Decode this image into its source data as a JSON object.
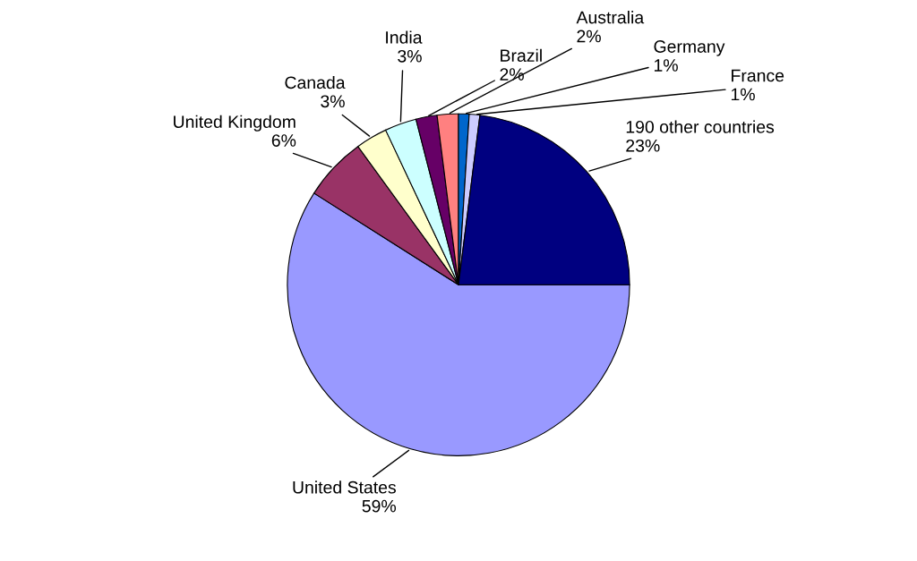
{
  "chart_data": {
    "type": "pie",
    "categories": [
      "United States",
      "United Kingdom",
      "Canada",
      "India",
      "Brazil",
      "Australia",
      "Germany",
      "France",
      "190 other countries"
    ],
    "values": [
      59,
      6,
      3,
      3,
      2,
      2,
      1,
      1,
      23
    ],
    "value_labels": [
      "59%",
      "6%",
      "3%",
      "3%",
      "2%",
      "2%",
      "1%",
      "1%",
      "23%"
    ],
    "colors": [
      "#9999ff",
      "#993366",
      "#ffffcc",
      "#ccffff",
      "#660066",
      "#ff8080",
      "#0066cc",
      "#ccccff",
      "#000080"
    ],
    "legend": false
  }
}
